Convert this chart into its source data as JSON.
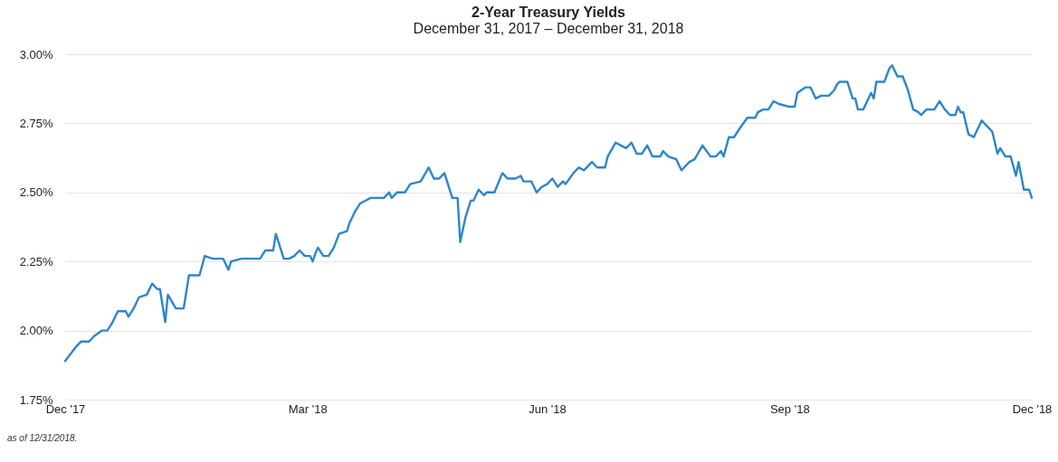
{
  "chart_data": {
    "type": "line",
    "title": "2-Year Treasury Yields",
    "subtitle": "December 31, 2017 – December 31, 2018",
    "x": [
      "2017-12-29",
      "2018-01-02",
      "2018-01-04",
      "2018-01-07",
      "2018-01-09",
      "2018-01-12",
      "2018-01-14",
      "2018-01-16",
      "2018-01-18",
      "2018-01-21",
      "2018-01-22",
      "2018-01-24",
      "2018-01-26",
      "2018-01-29",
      "2018-01-31",
      "2018-02-02",
      "2018-02-03",
      "2018-02-05",
      "2018-02-06",
      "2018-02-09",
      "2018-02-12",
      "2018-02-14",
      "2018-02-18",
      "2018-02-20",
      "2018-02-23",
      "2018-02-26",
      "2018-02-27",
      "2018-03-01",
      "2018-03-02",
      "2018-03-06",
      "2018-03-13",
      "2018-03-15",
      "2018-03-18",
      "2018-03-19",
      "2018-03-22",
      "2018-03-24",
      "2018-03-26",
      "2018-03-28",
      "2018-03-30",
      "2018-04-01",
      "2018-04-02",
      "2018-04-03",
      "2018-04-04",
      "2018-04-06",
      "2018-04-08",
      "2018-04-10",
      "2018-04-12",
      "2018-04-15",
      "2018-04-16",
      "2018-04-18",
      "2018-04-20",
      "2018-04-22",
      "2018-04-24",
      "2018-04-29",
      "2018-05-01",
      "2018-05-02",
      "2018-05-04",
      "2018-05-07",
      "2018-05-09",
      "2018-05-13",
      "2018-05-16",
      "2018-05-18",
      "2018-05-20",
      "2018-05-22",
      "2018-05-25",
      "2018-05-27",
      "2018-05-28",
      "2018-05-30",
      "2018-06-01",
      "2018-06-02",
      "2018-06-04",
      "2018-06-06",
      "2018-06-07",
      "2018-06-10",
      "2018-06-13",
      "2018-06-15",
      "2018-06-18",
      "2018-06-20",
      "2018-06-21",
      "2018-06-24",
      "2018-06-26",
      "2018-06-28",
      "2018-06-30",
      "2018-07-02",
      "2018-07-04",
      "2018-07-06",
      "2018-07-07",
      "2018-07-10",
      "2018-07-12",
      "2018-07-14",
      "2018-07-17",
      "2018-07-19",
      "2018-07-22",
      "2018-07-23",
      "2018-07-26",
      "2018-07-28",
      "2018-07-30",
      "2018-08-01",
      "2018-08-03",
      "2018-08-05",
      "2018-08-07",
      "2018-08-09",
      "2018-08-12",
      "2018-08-13",
      "2018-08-15",
      "2018-08-18",
      "2018-08-20",
      "2018-08-21",
      "2018-08-23",
      "2018-08-25",
      "2018-08-28",
      "2018-08-31",
      "2018-09-02",
      "2018-09-04",
      "2018-09-05",
      "2018-09-07",
      "2018-09-09",
      "2018-09-11",
      "2018-09-14",
      "2018-09-17",
      "2018-09-18",
      "2018-09-20",
      "2018-09-22",
      "2018-09-24",
      "2018-09-26",
      "2018-09-30",
      "2018-10-02",
      "2018-10-03",
      "2018-10-06",
      "2018-10-08",
      "2018-10-10",
      "2018-10-12",
      "2018-10-15",
      "2018-10-17",
      "2018-10-18",
      "2018-10-19",
      "2018-10-22",
      "2018-10-24",
      "2018-10-25",
      "2018-10-26",
      "2018-10-28",
      "2018-10-30",
      "2018-10-31",
      "2018-11-01",
      "2018-11-02",
      "2018-11-05",
      "2018-11-07",
      "2018-11-08",
      "2018-11-10",
      "2018-11-12",
      "2018-11-14",
      "2018-11-16",
      "2018-11-18",
      "2018-11-19",
      "2018-11-21",
      "2018-11-24",
      "2018-11-26",
      "2018-11-28",
      "2018-11-30",
      "2018-12-02",
      "2018-12-03",
      "2018-12-04",
      "2018-12-05",
      "2018-12-07",
      "2018-12-09",
      "2018-12-12",
      "2018-12-15",
      "2018-12-16",
      "2018-12-18",
      "2018-12-19",
      "2018-12-21",
      "2018-12-23",
      "2018-12-25",
      "2018-12-26",
      "2018-12-28",
      "2018-12-30",
      "2018-12-31"
    ],
    "series": [
      {
        "color": "#2e86c8",
        "values": [
          1.89,
          1.94,
          1.96,
          1.96,
          1.98,
          2.0,
          2.0,
          2.03,
          2.07,
          2.07,
          2.05,
          2.08,
          2.12,
          2.13,
          2.17,
          2.15,
          2.15,
          2.03,
          2.13,
          2.08,
          2.08,
          2.2,
          2.2,
          2.27,
          2.26,
          2.26,
          2.26,
          2.22,
          2.25,
          2.26,
          2.26,
          2.29,
          2.29,
          2.35,
          2.26,
          2.26,
          2.27,
          2.29,
          2.27,
          2.27,
          2.25,
          2.28,
          2.3,
          2.27,
          2.27,
          2.3,
          2.35,
          2.36,
          2.39,
          2.43,
          2.46,
          2.47,
          2.48,
          2.48,
          2.5,
          2.48,
          2.5,
          2.5,
          2.53,
          2.54,
          2.59,
          2.55,
          2.55,
          2.57,
          2.48,
          2.48,
          2.32,
          2.41,
          2.47,
          2.47,
          2.51,
          2.49,
          2.5,
          2.5,
          2.57,
          2.55,
          2.55,
          2.56,
          2.54,
          2.54,
          2.5,
          2.52,
          2.53,
          2.55,
          2.52,
          2.54,
          2.53,
          2.57,
          2.59,
          2.58,
          2.61,
          2.59,
          2.59,
          2.63,
          2.68,
          2.67,
          2.66,
          2.68,
          2.64,
          2.64,
          2.67,
          2.63,
          2.63,
          2.65,
          2.63,
          2.62,
          2.58,
          2.59,
          2.61,
          2.62,
          2.67,
          2.63,
          2.63,
          2.65,
          2.63,
          2.7,
          2.7,
          2.73,
          2.77,
          2.77,
          2.79,
          2.8,
          2.8,
          2.83,
          2.82,
          2.81,
          2.81,
          2.86,
          2.88,
          2.88,
          2.84,
          2.85,
          2.85,
          2.87,
          2.89,
          2.9,
          2.9,
          2.84,
          2.84,
          2.8,
          2.8,
          2.84,
          2.86,
          2.84,
          2.9,
          2.9,
          2.95,
          2.96,
          2.92,
          2.92,
          2.87,
          2.8,
          2.79,
          2.78,
          2.8,
          2.8,
          2.83,
          2.8,
          2.78,
          2.78,
          2.81,
          2.79,
          2.79,
          2.71,
          2.7,
          2.76,
          2.73,
          2.72,
          2.64,
          2.66,
          2.63,
          2.63,
          2.56,
          2.61,
          2.51,
          2.51,
          2.48
        ]
      }
    ],
    "xlim": [
      "2017-12-29",
      "2018-12-31"
    ],
    "xticks": [
      {
        "value": "2017-12-29",
        "label": "Dec '17"
      },
      {
        "value": "2018-03-31",
        "label": "Mar '18"
      },
      {
        "value": "2018-06-30",
        "label": "Jun '18"
      },
      {
        "value": "2018-09-30",
        "label": "Sep '18"
      },
      {
        "value": "2018-12-31",
        "label": "Dec '18"
      }
    ],
    "ylim": [
      1.75,
      3.0
    ],
    "yticks": [
      {
        "value": 1.75,
        "label": "1.75%"
      },
      {
        "value": 2.0,
        "label": "2.00%"
      },
      {
        "value": 2.25,
        "label": "2.25%"
      },
      {
        "value": 2.5,
        "label": "2.50%"
      },
      {
        "value": 2.75,
        "label": "2.75%"
      },
      {
        "value": 3.0,
        "label": "3.00%"
      }
    ],
    "grid": "y",
    "annotations": [
      "as of 12/31/2018."
    ]
  }
}
